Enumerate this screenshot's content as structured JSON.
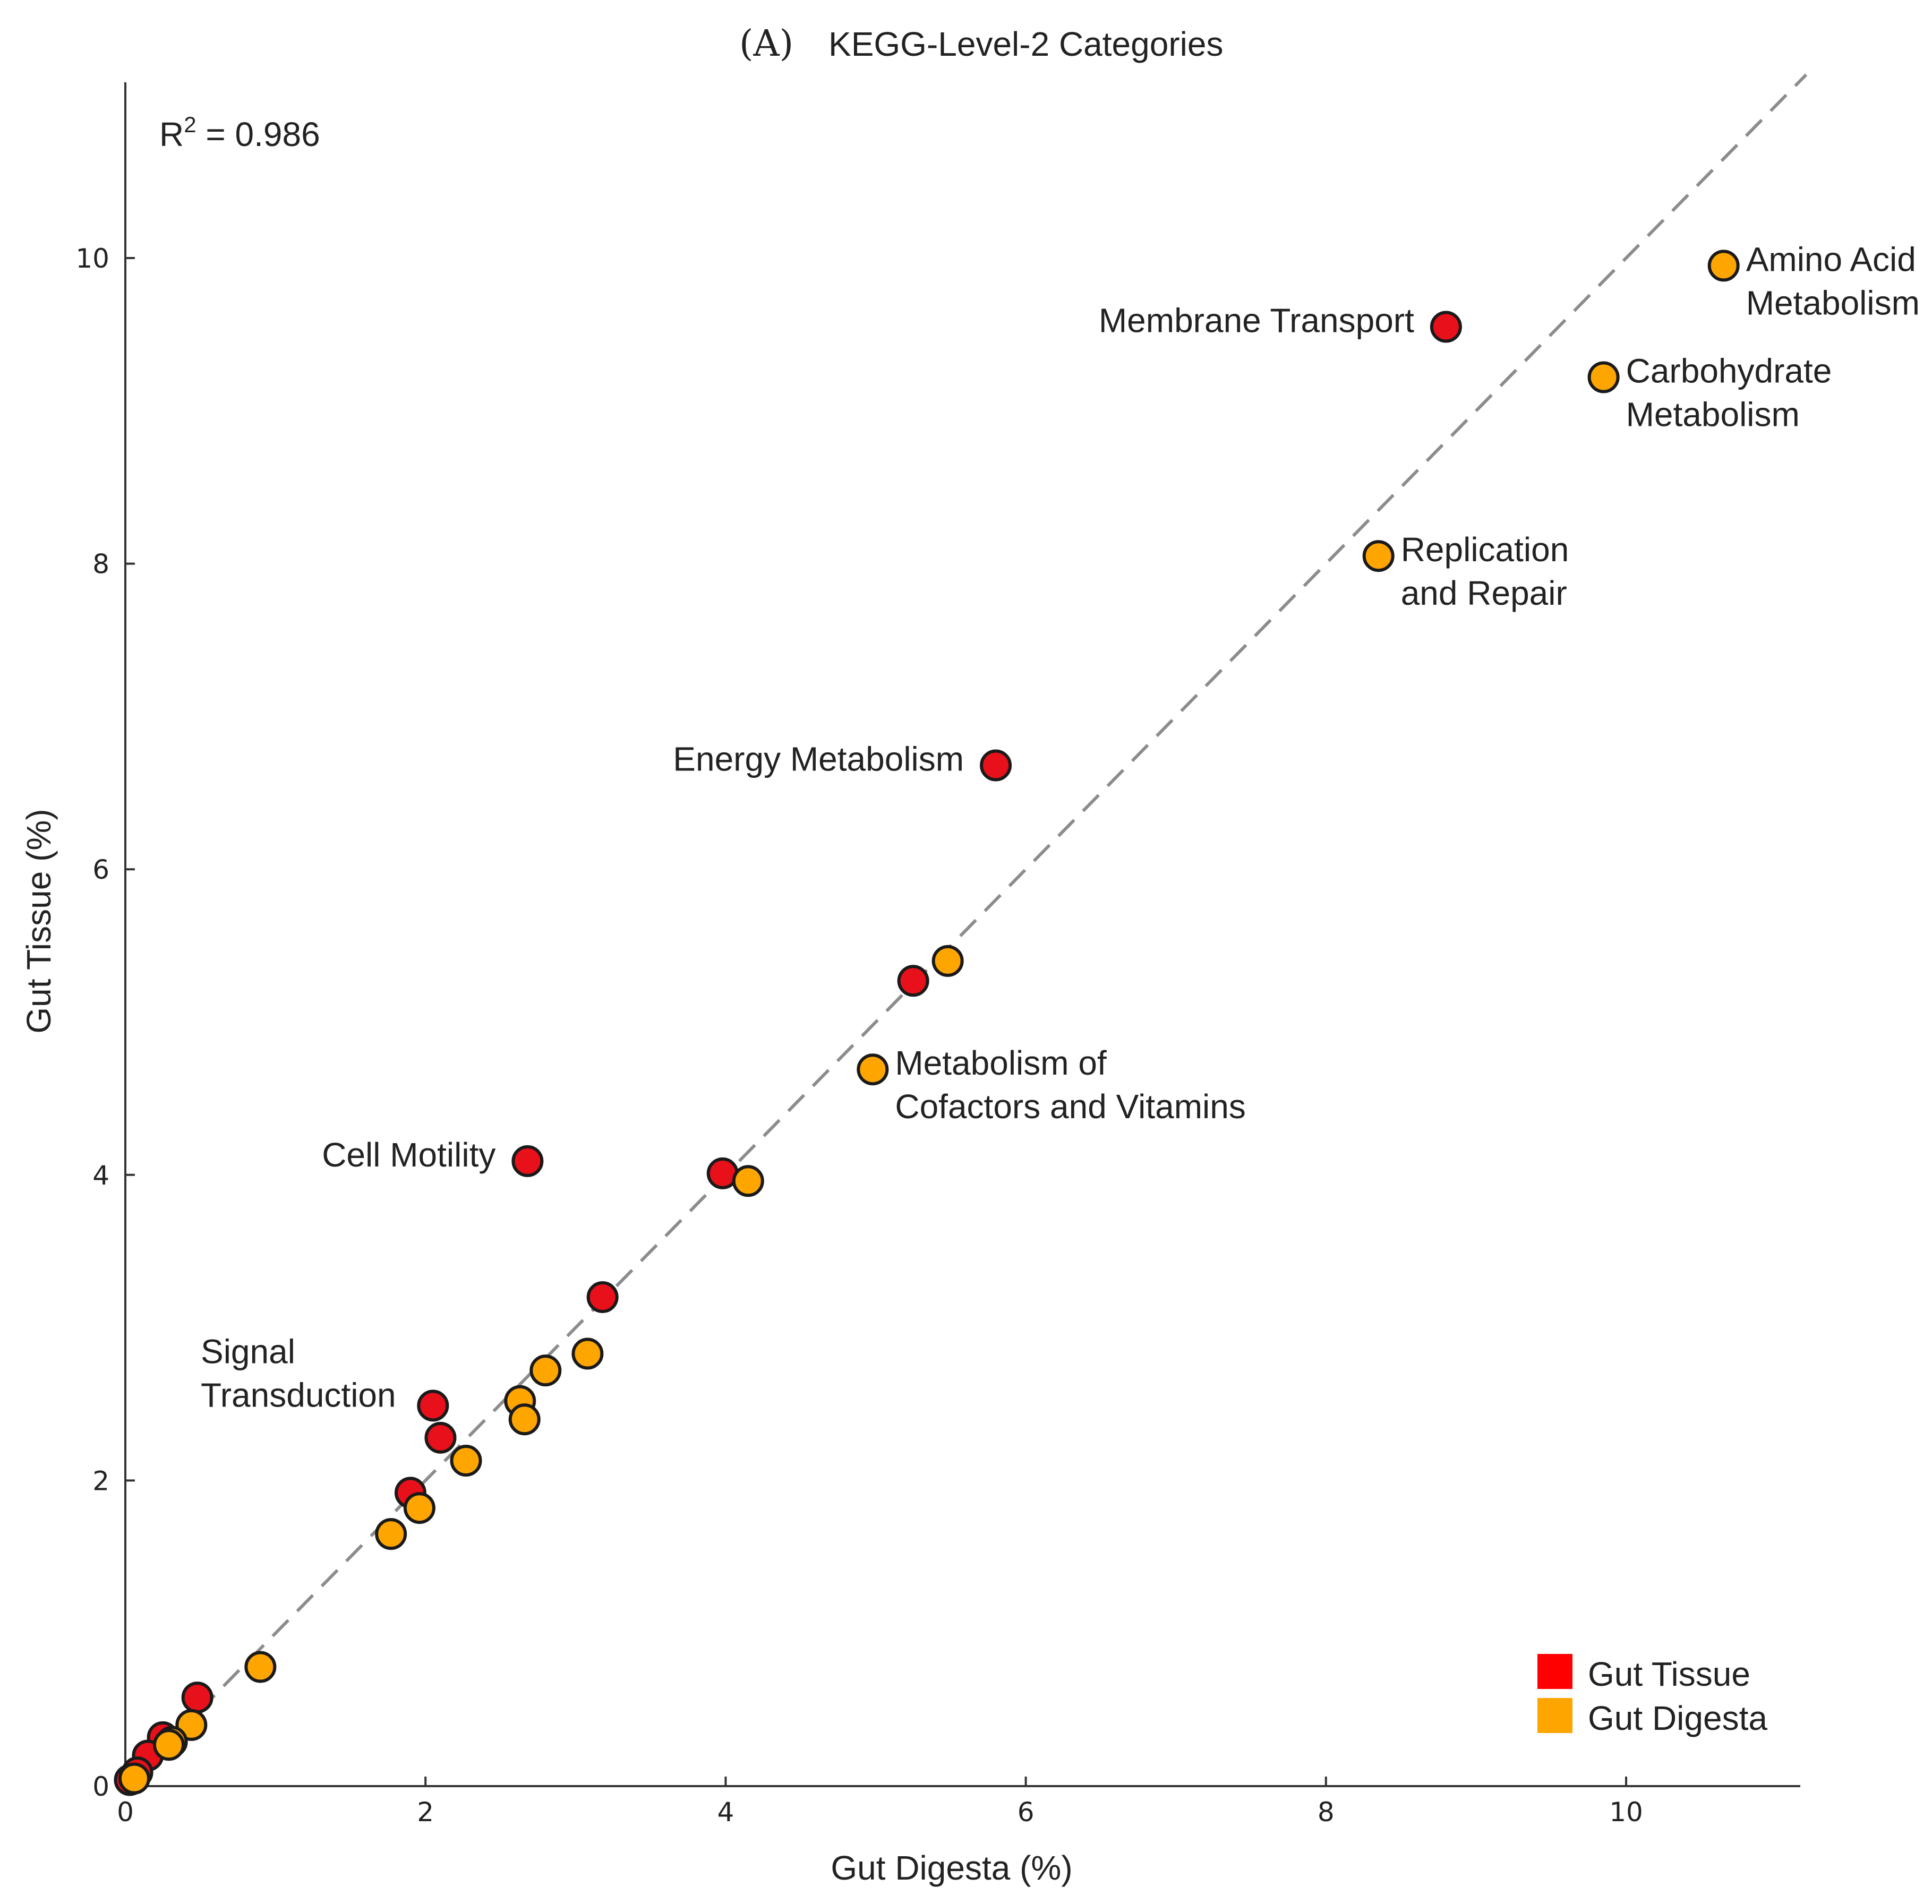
{
  "chart_data": {
    "type": "scatter",
    "panel": "(A)",
    "title": "KEGG-Level-2 Categories",
    "xlabel": "Gut Digesta (%)",
    "ylabel": "Gut Tissue (%)",
    "xlim": [
      0,
      11.2
    ],
    "ylim": [
      0,
      11.2
    ],
    "xticks": [
      "0",
      "2",
      "4",
      "6",
      "8",
      "10"
    ],
    "yticks": [
      "0",
      "2",
      "4",
      "6",
      "8",
      "10"
    ],
    "r2_label": "R",
    "r2_sup": "2",
    "r2_value": " = 0.986",
    "reference_line": {
      "style": "dashed",
      "from": [
        0,
        0
      ],
      "to": [
        11.2,
        11.2
      ],
      "color": "#8c8c8c"
    },
    "series": [
      {
        "name": "Gut Tissue",
        "color": "#e8101a",
        "points": [
          {
            "x": 8.8,
            "y": 9.55
          },
          {
            "x": 5.8,
            "y": 6.68
          },
          {
            "x": 5.25,
            "y": 5.27
          },
          {
            "x": 2.68,
            "y": 4.09
          },
          {
            "x": 3.98,
            "y": 4.01
          },
          {
            "x": 3.18,
            "y": 3.2
          },
          {
            "x": 2.05,
            "y": 2.49
          },
          {
            "x": 2.1,
            "y": 2.28
          },
          {
            "x": 1.9,
            "y": 1.92
          },
          {
            "x": 0.48,
            "y": 0.58
          },
          {
            "x": 0.25,
            "y": 0.32
          },
          {
            "x": 0.15,
            "y": 0.2
          },
          {
            "x": 0.08,
            "y": 0.09
          },
          {
            "x": 0.03,
            "y": 0.04
          }
        ]
      },
      {
        "name": "Gut Digesta",
        "color": "#ffa500",
        "points": [
          {
            "x": 10.65,
            "y": 9.95
          },
          {
            "x": 9.85,
            "y": 9.22
          },
          {
            "x": 8.35,
            "y": 8.05
          },
          {
            "x": 5.48,
            "y": 5.4
          },
          {
            "x": 4.98,
            "y": 4.69
          },
          {
            "x": 4.15,
            "y": 3.96
          },
          {
            "x": 3.08,
            "y": 2.83
          },
          {
            "x": 2.8,
            "y": 2.72
          },
          {
            "x": 2.63,
            "y": 2.52
          },
          {
            "x": 2.66,
            "y": 2.4
          },
          {
            "x": 2.27,
            "y": 2.13
          },
          {
            "x": 1.96,
            "y": 1.82
          },
          {
            "x": 1.77,
            "y": 1.65
          },
          {
            "x": 0.9,
            "y": 0.78
          },
          {
            "x": 0.44,
            "y": 0.4
          },
          {
            "x": 0.31,
            "y": 0.29
          },
          {
            "x": 0.29,
            "y": 0.27
          },
          {
            "x": 0.06,
            "y": 0.05
          }
        ]
      }
    ],
    "annotations": [
      {
        "lines": [
          "Amino Acid",
          "Metabolism"
        ],
        "x": 10.65,
        "y": 9.95,
        "side": "right"
      },
      {
        "lines": [
          "Membrane Transport"
        ],
        "x": 8.8,
        "y": 9.55,
        "side": "left"
      },
      {
        "lines": [
          "Carbohydrate",
          "Metabolism"
        ],
        "x": 9.85,
        "y": 9.22,
        "side": "right"
      },
      {
        "lines": [
          "Replication",
          "and Repair"
        ],
        "x": 8.35,
        "y": 8.05,
        "side": "right"
      },
      {
        "lines": [
          "Energy Metabolism"
        ],
        "x": 5.8,
        "y": 6.68,
        "side": "left"
      },
      {
        "lines": [
          "Metabolism of",
          "Cofactors and Vitamins"
        ],
        "x": 4.98,
        "y": 4.69,
        "side": "right"
      },
      {
        "lines": [
          "Cell Motility"
        ],
        "x": 2.68,
        "y": 4.09,
        "side": "left"
      },
      {
        "lines": [
          "Signal",
          "Transduction"
        ],
        "x": 2.05,
        "y": 2.49,
        "side": "left-above"
      }
    ],
    "legend": {
      "position": "bottom-right",
      "entries": [
        {
          "label": "Gut Tissue",
          "color": "#ff0000"
        },
        {
          "label": "Gut Digesta",
          "color": "#ffa500"
        }
      ]
    }
  }
}
